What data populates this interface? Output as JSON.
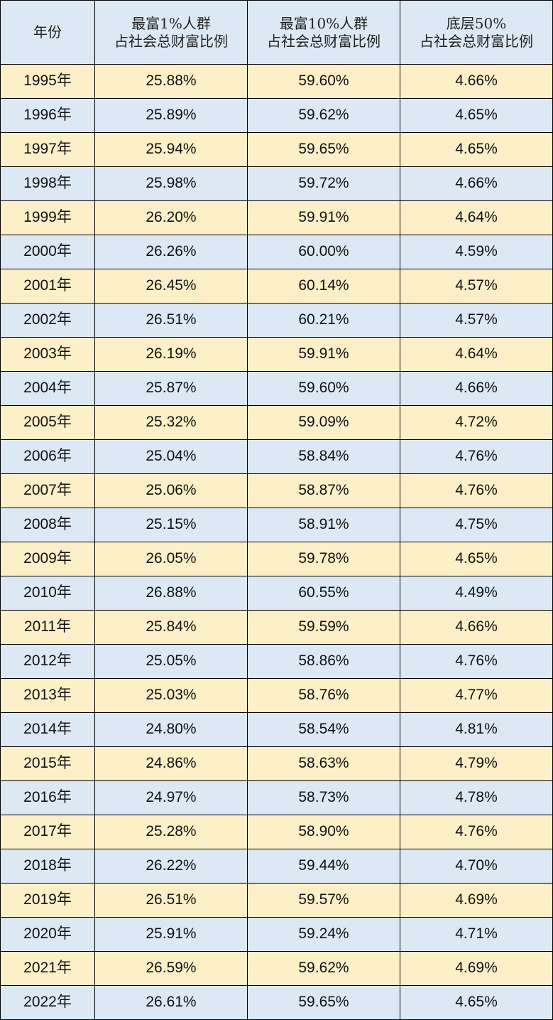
{
  "table": {
    "header": [
      [
        "年份"
      ],
      [
        "最富1%人群",
        "占社会总财富比例"
      ],
      [
        "最富10%人群",
        "占社会总财富比例"
      ],
      [
        "底层50%",
        "占社会总财富比例"
      ]
    ],
    "rows": [
      [
        "1995年",
        "25.88%",
        "59.60%",
        "4.66%"
      ],
      [
        "1996年",
        "25.89%",
        "59.62%",
        "4.65%"
      ],
      [
        "1997年",
        "25.94%",
        "59.65%",
        "4.65%"
      ],
      [
        "1998年",
        "25.98%",
        "59.72%",
        "4.66%"
      ],
      [
        "1999年",
        "26.20%",
        "59.91%",
        "4.64%"
      ],
      [
        "2000年",
        "26.26%",
        "60.00%",
        "4.59%"
      ],
      [
        "2001年",
        "26.45%",
        "60.14%",
        "4.57%"
      ],
      [
        "2002年",
        "26.51%",
        "60.21%",
        "4.57%"
      ],
      [
        "2003年",
        "26.19%",
        "59.91%",
        "4.64%"
      ],
      [
        "2004年",
        "25.87%",
        "59.60%",
        "4.66%"
      ],
      [
        "2005年",
        "25.32%",
        "59.09%",
        "4.72%"
      ],
      [
        "2006年",
        "25.04%",
        "58.84%",
        "4.76%"
      ],
      [
        "2007年",
        "25.06%",
        "58.87%",
        "4.76%"
      ],
      [
        "2008年",
        "25.15%",
        "58.91%",
        "4.75%"
      ],
      [
        "2009年",
        "26.05%",
        "59.78%",
        "4.65%"
      ],
      [
        "2010年",
        "26.88%",
        "60.55%",
        "4.49%"
      ],
      [
        "2011年",
        "25.84%",
        "59.59%",
        "4.66%"
      ],
      [
        "2012年",
        "25.05%",
        "58.86%",
        "4.76%"
      ],
      [
        "2013年",
        "25.03%",
        "58.76%",
        "4.77%"
      ],
      [
        "2014年",
        "24.80%",
        "58.54%",
        "4.81%"
      ],
      [
        "2015年",
        "24.86%",
        "58.63%",
        "4.79%"
      ],
      [
        "2016年",
        "24.97%",
        "58.73%",
        "4.78%"
      ],
      [
        "2017年",
        "25.28%",
        "58.90%",
        "4.76%"
      ],
      [
        "2018年",
        "26.22%",
        "59.44%",
        "4.70%"
      ],
      [
        "2019年",
        "26.51%",
        "59.57%",
        "4.69%"
      ],
      [
        "2020年",
        "25.91%",
        "59.24%",
        "4.71%"
      ],
      [
        "2021年",
        "26.59%",
        "59.62%",
        "4.69%"
      ],
      [
        "2022年",
        "26.61%",
        "59.65%",
        "4.65%"
      ]
    ]
  }
}
